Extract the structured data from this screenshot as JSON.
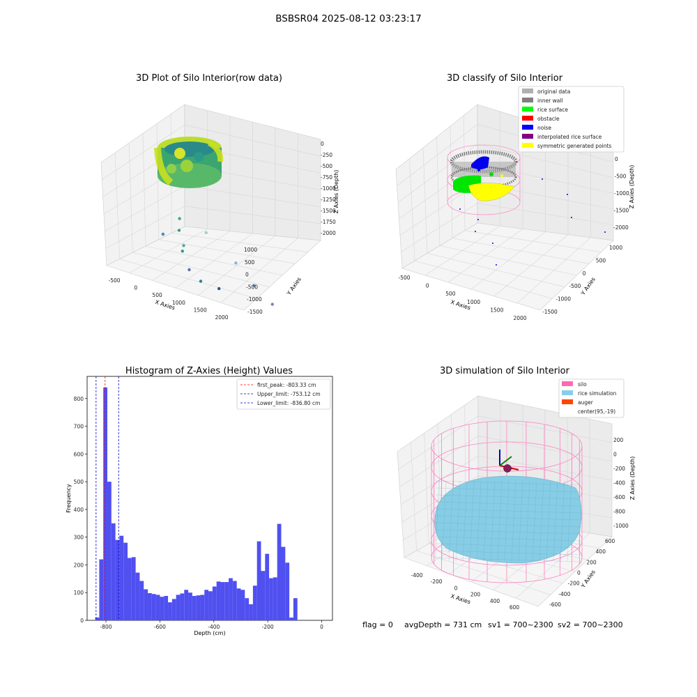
{
  "figure": {
    "suptitle": "BSBSR04 2025-08-12 03:23:17"
  },
  "colors": {
    "hist_bar": "#5050f0",
    "first_peak_line": "#ff0000",
    "limit_line": "#0000cc",
    "grid": "#cccccc"
  },
  "chart_data": [
    {
      "type": "scatter",
      "name": "raw",
      "title": "3D Plot of Silo Interior(row data)",
      "xlabel": "X Axies",
      "ylabel": "Y Axies",
      "zlabel": "Z Axies (Depth)",
      "x_ticks": [
        "-500",
        "0",
        "500",
        "1000",
        "1500",
        "2000"
      ],
      "y_ticks": [
        "1000",
        "500",
        "0",
        "-500",
        "-1000",
        "-1500"
      ],
      "z_ticks": [
        "0",
        "-250",
        "-500",
        "-750",
        "-1000",
        "-1250",
        "-1500",
        "-1750",
        "-2000"
      ],
      "xlim": [
        -600,
        2200
      ],
      "ylim": [
        -1700,
        1200
      ],
      "zlim": [
        -2100,
        100
      ],
      "colormap": "viridis",
      "outlier_points": [
        {
          "x": 1200,
          "y": 600,
          "z": -1100
        },
        {
          "x": 1700,
          "y": 200,
          "z": -1450
        },
        {
          "x": 1900,
          "y": -200,
          "z": -1750
        },
        {
          "x": 2100,
          "y": -600,
          "z": -2000
        },
        {
          "x": 300,
          "y": 300,
          "z": -1100
        },
        {
          "x": 150,
          "y": 100,
          "z": -1300
        },
        {
          "x": -200,
          "y": 200,
          "z": -1400
        },
        {
          "x": 200,
          "y": 0,
          "z": -1500
        },
        {
          "x": 100,
          "y": -100,
          "z": -1600
        },
        {
          "x": 0,
          "y": -500,
          "z": -1900
        },
        {
          "x": 300,
          "y": -500,
          "z": -2000
        },
        {
          "x": 500,
          "y": -900,
          "z": -2100
        }
      ]
    },
    {
      "type": "scatter",
      "name": "classify",
      "title": "3D classify of Silo Interior",
      "xlabel": "X Axies",
      "ylabel": "Y Axies",
      "zlabel": "Z Axies (Depth)",
      "x_ticks": [
        "-500",
        "0",
        "500",
        "1000",
        "1500",
        "2000"
      ],
      "y_ticks": [
        "1000",
        "500",
        "0",
        "-500",
        "-1000",
        "-1500"
      ],
      "z_ticks": [
        "0",
        "-500",
        "-1000",
        "-1500",
        "-2000"
      ],
      "legend": [
        {
          "label": "original data",
          "color": "#b0b0b0"
        },
        {
          "label": "inner wall",
          "color": "#808080"
        },
        {
          "label": "rice surface",
          "color": "#00ff00"
        },
        {
          "label": "obstacle",
          "color": "#ff0000"
        },
        {
          "label": "noise",
          "color": "#0000ff"
        },
        {
          "label": "interpolated rice surface",
          "color": "#800080"
        },
        {
          "label": "symmetric generated points",
          "color": "#ffff00"
        }
      ],
      "legend_loc": "upper right"
    },
    {
      "type": "bar",
      "name": "histogram",
      "title": "Histogram of Z-Axies (Height) Values",
      "xlabel": "Depth (cm)",
      "ylabel": "Frequency",
      "xlim": [
        -870,
        40
      ],
      "ylim": [
        0,
        880
      ],
      "x_ticks": [
        -800,
        -600,
        -400,
        -200,
        0
      ],
      "y_ticks": [
        0,
        100,
        200,
        300,
        400,
        500,
        600,
        700,
        800
      ],
      "bin_start": -840,
      "bin_width": 15,
      "values": [
        10,
        220,
        840,
        500,
        350,
        290,
        305,
        280,
        225,
        228,
        172,
        142,
        112,
        98,
        95,
        92,
        85,
        88,
        65,
        77,
        92,
        97,
        110,
        100,
        88,
        90,
        92,
        110,
        105,
        122,
        140,
        138,
        138,
        152,
        142,
        115,
        110,
        80,
        58,
        125,
        285,
        178,
        240,
        152,
        155,
        348,
        265,
        208,
        10,
        80
      ],
      "vlines": [
        {
          "label": "first_peak: -803.33 cm",
          "x": -803.33,
          "style": "dashed",
          "color": "#ff0000"
        },
        {
          "label": "Upper_limit: -753.12 cm",
          "x": -753.12,
          "style": "dashed",
          "color": "#0000cc"
        },
        {
          "label": "Lower_limit: -836.80 cm",
          "x": -836.8,
          "style": "dashed",
          "color": "#0000cc"
        }
      ],
      "legend_loc": "upper right"
    },
    {
      "type": "surface",
      "name": "simulation",
      "title": "3D simulation of Silo Interior",
      "xlabel": "X Axies",
      "ylabel": "Y Axies",
      "zlabel": "Z Axies (Depth)",
      "x_ticks": [
        "-400",
        "-200",
        "0",
        "200",
        "400",
        "600"
      ],
      "y_ticks": [
        "600",
        "400",
        "200",
        "0",
        "-200",
        "-400",
        "-600"
      ],
      "z_ticks": [
        "200",
        "0",
        "-200",
        "-400",
        "-600",
        "-800",
        "-1000"
      ],
      "legend": [
        {
          "label": "silo",
          "color": "#ff69b4"
        },
        {
          "label": "rice simulation",
          "color": "#87ceeb"
        },
        {
          "label": "auger",
          "color": "#ff4500"
        },
        {
          "label": "center(95,-19)",
          "color": ""
        }
      ],
      "legend_loc": "upper right"
    }
  ],
  "status": {
    "flag": "flag = 0",
    "avg_depth": "avgDepth = 731 cm",
    "sv1": "sv1 = 700~2300",
    "sv2": "sv2 = 700~2300"
  }
}
